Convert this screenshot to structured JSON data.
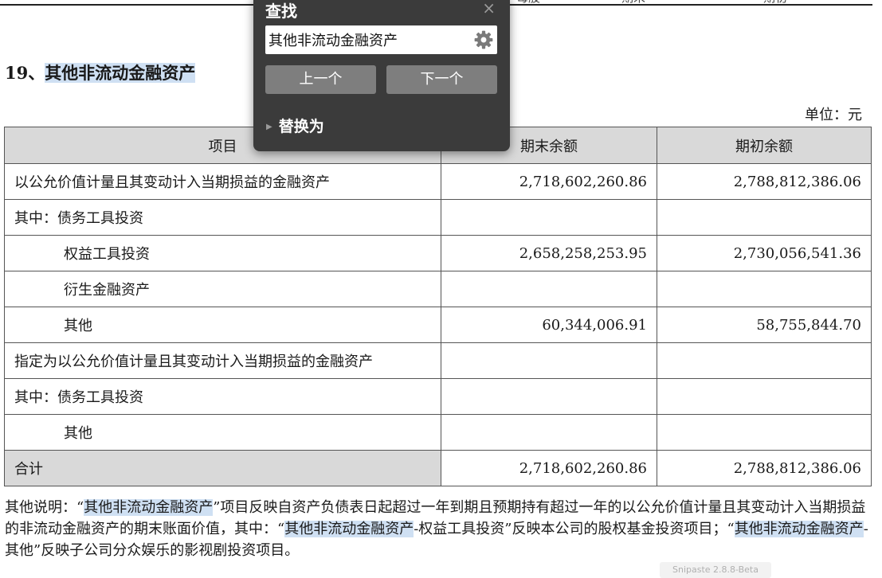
{
  "page": {
    "section_number": "19、",
    "section_title": "其他非流动金融资产",
    "unit_label": "单位：元",
    "cut_text_1": "每股",
    "cut_text_2": "期末",
    "cut_text_3": "期初"
  },
  "table": {
    "headers": [
      "项目",
      "期末余额",
      "期初余额"
    ],
    "rows": [
      {
        "label": "以公允价值计量且其变动计入当期损益的金融资产",
        "end": "2,718,602,260.86",
        "begin": "2,788,812,386.06"
      },
      {
        "label": "其中：债务工具投资",
        "end": "",
        "begin": ""
      },
      {
        "label": "权益工具投资",
        "end": "2,658,258,253.95",
        "begin": "2,730,056,541.36"
      },
      {
        "label": "衍生金融资产",
        "end": "",
        "begin": ""
      },
      {
        "label": "其他",
        "end": "60,344,006.91",
        "begin": "58,755,844.70"
      },
      {
        "label": "指定为以公允价值计量且其变动计入当期损益的金融资产",
        "end": "",
        "begin": ""
      },
      {
        "label": "其中：债务工具投资",
        "end": "",
        "begin": ""
      },
      {
        "label": "其他",
        "end": "",
        "begin": ""
      },
      {
        "label": "合计",
        "end": "2,718,602,260.86",
        "begin": "2,788,812,386.06"
      }
    ]
  },
  "notes": {
    "p1": "其他说明：“",
    "hl1": "其他非流动金融资产",
    "p2": "”项目反映自资产负债表日起超过一年到期且预期持有超过一年的以公允价值计量且其变动计入当期损益的非流动金融资产的期末账面价值，其中：“",
    "hl2": "其他非流动金融资产",
    "p3": "-权益工具投资”反映本公司的股权基金投资项目；“",
    "hl3": "其他非流动金融资产",
    "p4": "-其他”反映子公司分众娱乐的影视剧投资项目。"
  },
  "watermark": "Snipaste 2.8.8-Beta",
  "find_dialog": {
    "title": "查找",
    "close_symbol": "×",
    "search_value": "其他非流动金融资产",
    "prev_label": "上一个",
    "next_label": "下一个",
    "replace_label": "替换为",
    "gear_icon": "gear-icon",
    "close_icon": "close-icon"
  },
  "colors": {
    "dialog_bg": "#3b3b3b",
    "button_bg": "#7e7e7e",
    "highlight": "#cfe0f3",
    "header_bg": "#d9d9d9"
  }
}
